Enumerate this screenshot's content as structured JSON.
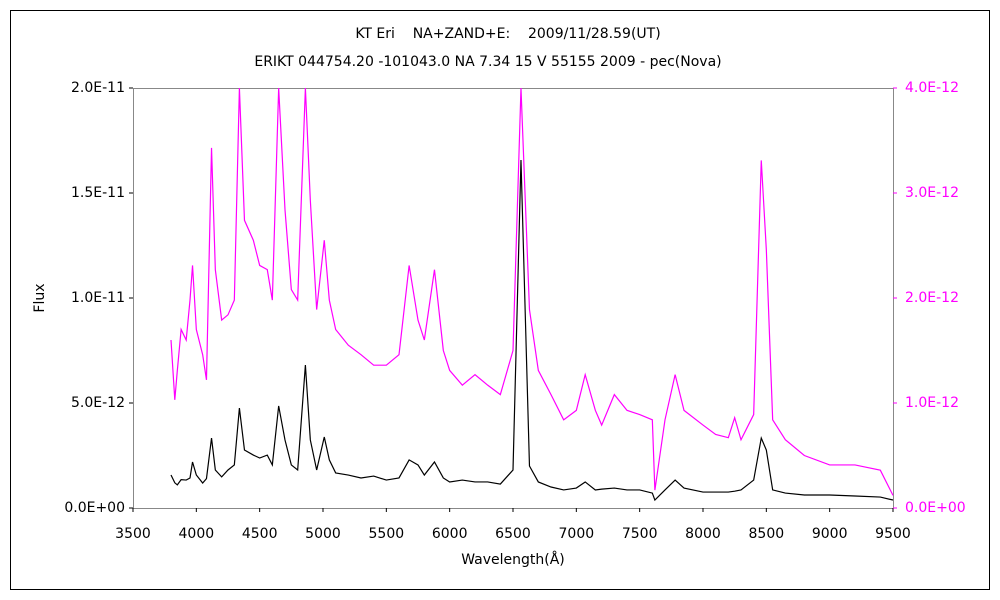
{
  "chart_data": {
    "type": "line",
    "title": "KT Eri    NA+ZAND+E:    2009/11/28.59(UT)",
    "subtitle": "ERIKT 044754.20 -101043.0 NA 7.34 15 V 55155 2009 - pec(Nova)",
    "x_label": "Wavelength(Å)",
    "y_label": "Flux",
    "x": [
      3800,
      3830,
      3850,
      3880,
      3920,
      3950,
      3970,
      4000,
      4050,
      4080,
      4120,
      4150,
      4200,
      4250,
      4300,
      4340,
      4380,
      4450,
      4500,
      4560,
      4600,
      4650,
      4700,
      4750,
      4800,
      4861,
      4900,
      4950,
      5010,
      5050,
      5100,
      5200,
      5300,
      5400,
      5500,
      5600,
      5680,
      5750,
      5800,
      5880,
      5950,
      6000,
      6100,
      6200,
      6300,
      6400,
      6500,
      6563,
      6630,
      6700,
      6800,
      6900,
      7000,
      7070,
      7150,
      7200,
      7300,
      7400,
      7500,
      7600,
      7620,
      7700,
      7780,
      7850,
      8000,
      8100,
      8200,
      8250,
      8300,
      8400,
      8460,
      8500,
      8550,
      8650,
      8800,
      9000,
      9200,
      9400,
      9500
    ],
    "series": [
      {
        "color": "#000000",
        "axis": "y",
        "values": [
          1.57e-12,
          1.2e-12,
          1.1e-12,
          1.35e-12,
          1.33e-12,
          1.43e-12,
          2.19e-12,
          1.57e-12,
          1.19e-12,
          1.4e-12,
          3.33e-12,
          1.81e-12,
          1.48e-12,
          1.81e-12,
          2.05e-12,
          4.76e-12,
          2.76e-12,
          2.52e-12,
          2.38e-12,
          2.52e-12,
          2.05e-12,
          4.86e-12,
          3.24e-12,
          2.05e-12,
          1.81e-12,
          6.81e-12,
          3.24e-12,
          1.81e-12,
          3.38e-12,
          2.29e-12,
          1.67e-12,
          1.57e-12,
          1.43e-12,
          1.52e-12,
          1.33e-12,
          1.43e-12,
          2.29e-12,
          2.05e-12,
          1.57e-12,
          2.19e-12,
          1.43e-12,
          1.24e-12,
          1.33e-12,
          1.24e-12,
          1.24e-12,
          1.14e-12,
          1.81e-12,
          1.657e-11,
          2e-12,
          1.24e-12,
          1e-12,
          8.6e-13,
          9.5e-13,
          1.24e-12,
          8.6e-13,
          9e-13,
          9.5e-13,
          8.6e-13,
          8.6e-13,
          7.1e-13,
          3.8e-13,
          8.6e-13,
          1.33e-12,
          9.5e-13,
          7.6e-13,
          7.6e-13,
          7.6e-13,
          8e-13,
          8.6e-13,
          1.33e-12,
          3.33e-12,
          2.76e-12,
          8.6e-13,
          7.1e-13,
          6.2e-13,
          6.2e-13,
          5.7e-13,
          5.2e-13,
          3.8e-13
        ]
      },
      {
        "color": "#ff00ff",
        "axis": "y2",
        "values": [
          1.6e-12,
          1.03e-12,
          1.31e-12,
          1.7e-12,
          1.6e-12,
          1.98e-12,
          2.31e-12,
          1.7e-12,
          1.46e-12,
          1.22e-12,
          3.43e-12,
          2.27e-12,
          1.79e-12,
          1.84e-12,
          1.98e-12,
          4e-12,
          2.74e-12,
          2.55e-12,
          2.31e-12,
          2.27e-12,
          1.98e-12,
          4e-12,
          2.84e-12,
          2.08e-12,
          1.98e-12,
          4e-12,
          2.93e-12,
          1.89e-12,
          2.55e-12,
          1.98e-12,
          1.7e-12,
          1.55e-12,
          1.46e-12,
          1.36e-12,
          1.36e-12,
          1.46e-12,
          2.31e-12,
          1.79e-12,
          1.6e-12,
          2.27e-12,
          1.5e-12,
          1.31e-12,
          1.17e-12,
          1.27e-12,
          1.17e-12,
          1.08e-12,
          1.5e-12,
          4e-12,
          1.89e-12,
          1.31e-12,
          1.08e-12,
          8.4e-13,
          9.3e-13,
          1.27e-12,
          9.3e-13,
          7.9e-13,
          1.08e-12,
          9.3e-13,
          8.9e-13,
          8.4e-13,
          1.7e-13,
          8.4e-13,
          1.27e-12,
          9.3e-13,
          7.9e-13,
          7e-13,
          6.7e-13,
          8.6e-13,
          6.5e-13,
          8.9e-13,
          3.31e-12,
          2.46e-12,
          8.4e-13,
          6.5e-13,
          5e-13,
          4.1e-13,
          4.1e-13,
          3.6e-13,
          1.2e-13
        ]
      }
    ],
    "xlim": [
      3500,
      9500
    ],
    "xticks": [
      3500,
      4000,
      4500,
      5000,
      5500,
      6000,
      6500,
      7000,
      7500,
      8000,
      8500,
      9000,
      9500
    ],
    "ylim": [
      0,
      2e-11
    ],
    "yticks": [
      {
        "value": 0,
        "label": "0.0E+00"
      },
      {
        "value": 5e-12,
        "label": "5.0E-12"
      },
      {
        "value": 1e-11,
        "label": "1.0E-11"
      },
      {
        "value": 1.5e-11,
        "label": "1.5E-11"
      },
      {
        "value": 2e-11,
        "label": "2.0E-11"
      }
    ],
    "y2lim": [
      0,
      4e-12
    ],
    "y2ticks": [
      {
        "value": 0,
        "label": "0.0E+00"
      },
      {
        "value": 1e-12,
        "label": "1.0E-12"
      },
      {
        "value": 2e-12,
        "label": "2.0E-12"
      },
      {
        "value": 3e-12,
        "label": "3.0E-12"
      },
      {
        "value": 4e-12,
        "label": "4.0E-12"
      }
    ],
    "y2_color": "#ff00ff",
    "grid": false
  }
}
